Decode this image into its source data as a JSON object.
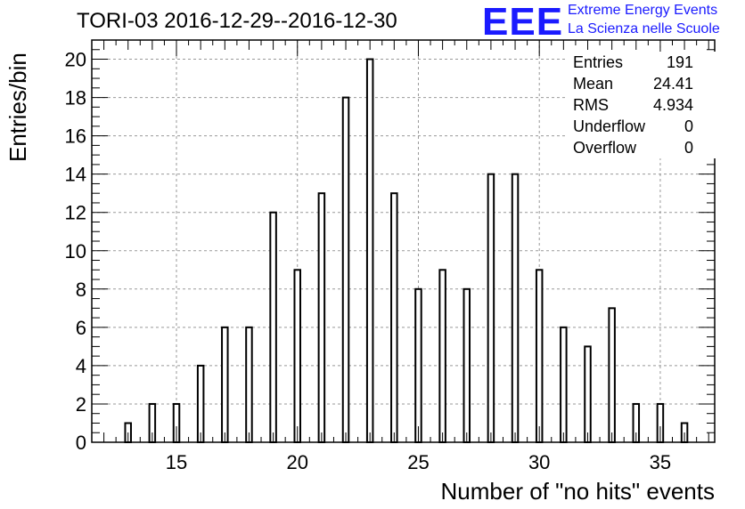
{
  "title": "TORI-03 2016-12-29--2016-12-30",
  "logo": {
    "mark": "EEE",
    "line1": "Extreme Energy Events",
    "line2": "La Scienza nelle Scuole",
    "color": "#1a1aff"
  },
  "stats": [
    {
      "key": "Entries",
      "value": "191"
    },
    {
      "key": "Mean",
      "value": "24.41"
    },
    {
      "key": "RMS",
      "value": "4.934"
    },
    {
      "key": "Underflow",
      "value": "0"
    },
    {
      "key": "Overflow",
      "value": "0"
    }
  ],
  "chart_data": {
    "type": "bar",
    "xlabel": "Number of \"no hits\" events",
    "ylabel": "Entries/bin",
    "xlim": [
      11.5,
      37.25
    ],
    "ylim": [
      0,
      21
    ],
    "x_ticks": [
      15,
      20,
      25,
      30,
      35
    ],
    "y_ticks": [
      0,
      2,
      4,
      6,
      8,
      10,
      12,
      14,
      16,
      18,
      20
    ],
    "grid": true,
    "bins": [
      {
        "x": 13,
        "count": 1
      },
      {
        "x": 14,
        "count": 2
      },
      {
        "x": 15,
        "count": 2
      },
      {
        "x": 16,
        "count": 4
      },
      {
        "x": 17,
        "count": 6
      },
      {
        "x": 18,
        "count": 6
      },
      {
        "x": 19,
        "count": 12
      },
      {
        "x": 20,
        "count": 9
      },
      {
        "x": 21,
        "count": 13
      },
      {
        "x": 22,
        "count": 18
      },
      {
        "x": 23,
        "count": 20
      },
      {
        "x": 24,
        "count": 13
      },
      {
        "x": 25,
        "count": 8
      },
      {
        "x": 26,
        "count": 9
      },
      {
        "x": 27,
        "count": 8
      },
      {
        "x": 28,
        "count": 14
      },
      {
        "x": 29,
        "count": 14
      },
      {
        "x": 30,
        "count": 9
      },
      {
        "x": 31,
        "count": 6
      },
      {
        "x": 32,
        "count": 5
      },
      {
        "x": 33,
        "count": 7
      },
      {
        "x": 34,
        "count": 2
      },
      {
        "x": 35,
        "count": 2
      },
      {
        "x": 36,
        "count": 1
      }
    ]
  }
}
